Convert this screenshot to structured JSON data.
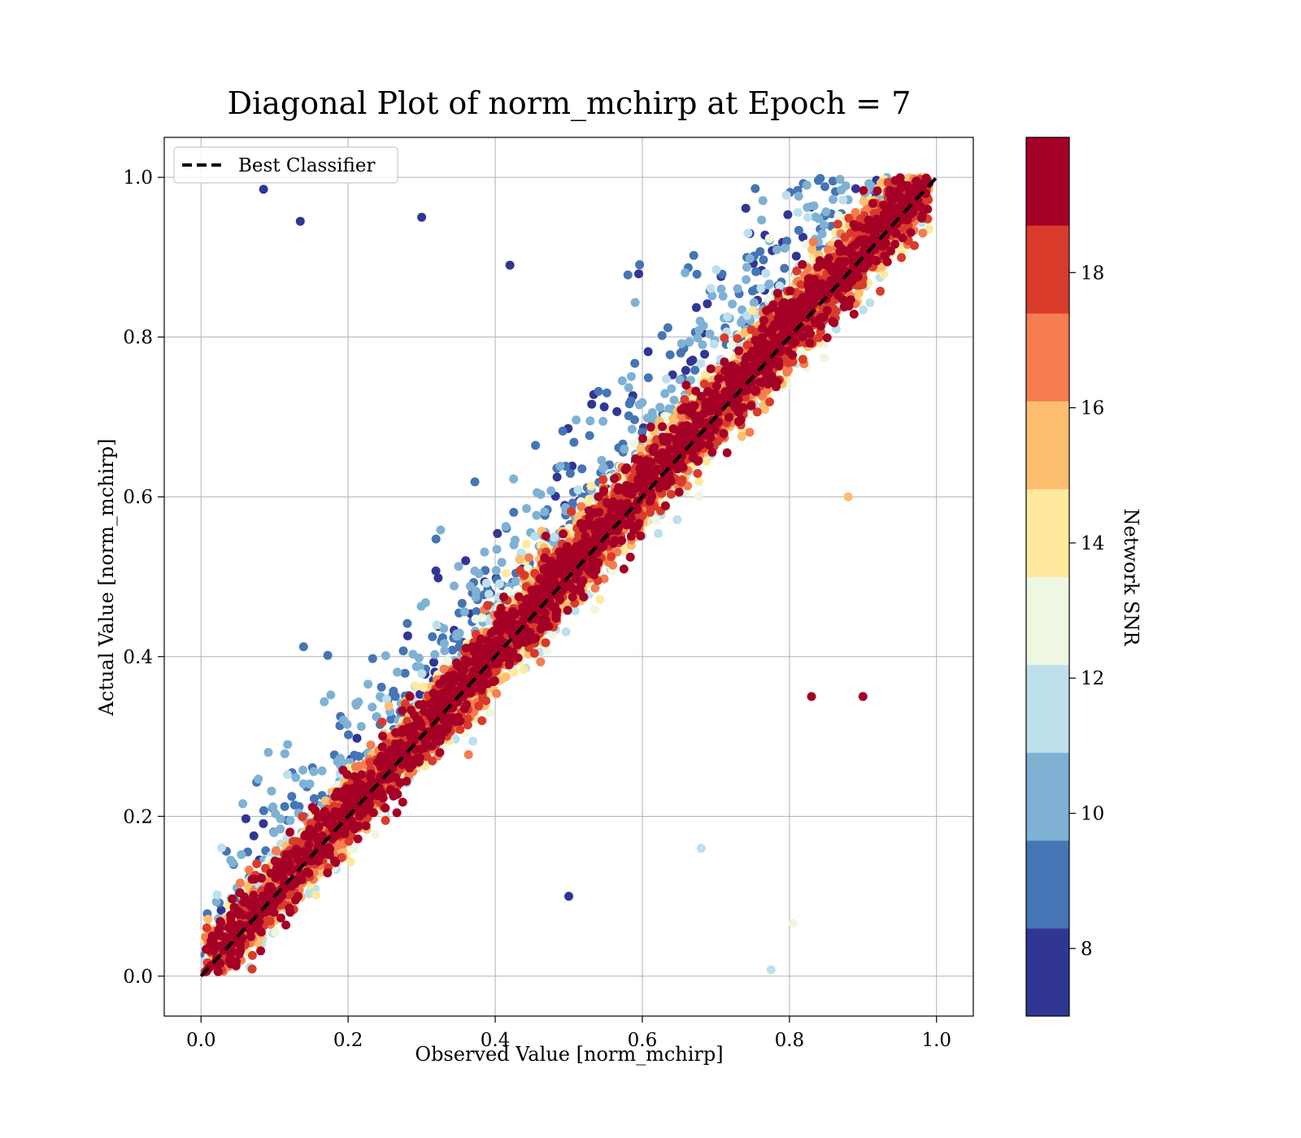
{
  "chart_data": {
    "type": "scatter",
    "title": "Diagonal Plot of norm_mchirp at Epoch = 7",
    "xlabel": "Observed Value [norm_mchirp]",
    "ylabel": "Actual Value [norm_mchirp]",
    "xlim": [
      -0.05,
      1.05
    ],
    "ylim": [
      -0.05,
      1.05
    ],
    "x_ticks": [
      "0.0",
      "0.2",
      "0.4",
      "0.6",
      "0.8",
      "1.0"
    ],
    "y_ticks": [
      "0.0",
      "0.2",
      "0.4",
      "0.6",
      "0.8",
      "1.0"
    ],
    "grid": true,
    "legend": {
      "placement": "upper-left",
      "entries": [
        "Best Classifier"
      ]
    },
    "reference_line": {
      "name": "Best Classifier",
      "x": [
        0.0,
        1.0
      ],
      "y": [
        0.0,
        1.0
      ],
      "color": "#000000",
      "style": "dashed"
    },
    "colorbar": {
      "label": "Network SNR",
      "range": [
        7,
        20
      ],
      "ticks": [
        "8",
        "10",
        "12",
        "14",
        "16",
        "18"
      ],
      "tick_values": [
        8,
        10,
        12,
        14,
        16,
        18
      ],
      "levels": [
        7,
        8,
        9,
        10,
        11,
        12,
        13,
        14,
        15,
        16,
        17,
        18,
        19,
        20
      ],
      "colors": [
        "#313695",
        "#4575b4",
        "#7fb1d4",
        "#bde0ec",
        "#eef7e0",
        "#fee99e",
        "#fdbe70",
        "#f57d4f",
        "#d93b2b",
        "#a50026"
      ]
    },
    "series": [
      {
        "type": "scatter",
        "points_description_note": "",
        "sample_points": [
          [
            0.085,
            0.985,
            8
          ],
          [
            0.135,
            0.945,
            8
          ],
          [
            0.83,
            0.35,
            20
          ],
          [
            0.9,
            0.35,
            20
          ],
          [
            0.775,
            0.008,
            11
          ],
          [
            0.805,
            0.066,
            13
          ],
          [
            0.94,
            0.96,
            20
          ],
          [
            0.42,
            0.89,
            8
          ],
          [
            0.3,
            0.95,
            8
          ],
          [
            0.5,
            0.1,
            8
          ],
          [
            0.68,
            0.16,
            11
          ],
          [
            0.88,
            0.6,
            15
          ]
        ]
      }
    ]
  }
}
